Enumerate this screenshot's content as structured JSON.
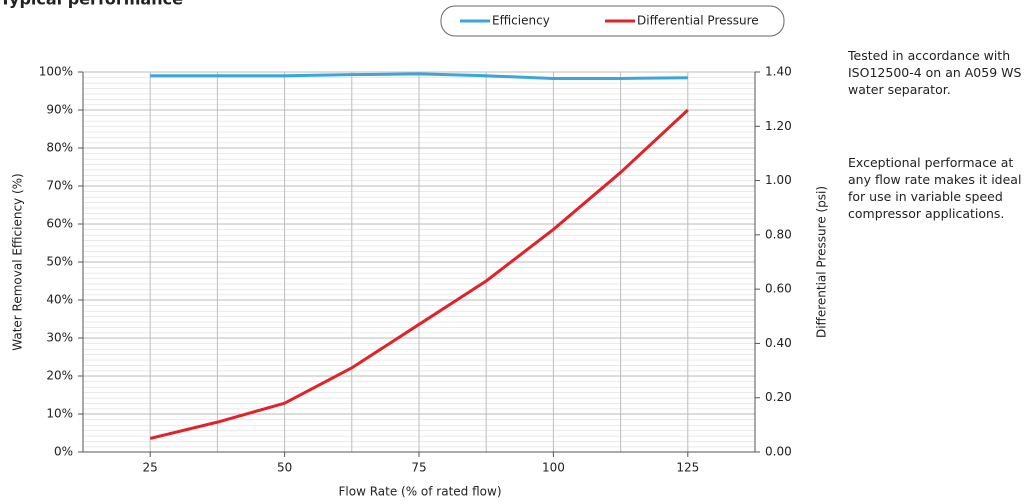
{
  "chart_data": {
    "type": "line",
    "title": "Typical performance",
    "x_label": "Flow Rate (% of rated flow)",
    "y_label": "Water Removal Efficiency (%)",
    "y2_label": "Differential Pressure (psi)",
    "x": [
      25,
      37.5,
      50,
      62.5,
      75,
      87.5,
      100,
      112.5,
      125
    ],
    "xlim": [
      12.5,
      137.5
    ],
    "xticks": [
      25,
      50,
      75,
      100,
      125
    ],
    "ylim": [
      0,
      100
    ],
    "yticks": [
      {
        "value": 0,
        "label": "0%"
      },
      {
        "value": 10,
        "label": "10%"
      },
      {
        "value": 20,
        "label": "20%"
      },
      {
        "value": 30,
        "label": "30%"
      },
      {
        "value": 40,
        "label": "40%"
      },
      {
        "value": 50,
        "label": "50%"
      },
      {
        "value": 60,
        "label": "60%"
      },
      {
        "value": 70,
        "label": "70%"
      },
      {
        "value": 80,
        "label": "80%"
      },
      {
        "value": 90,
        "label": "90%"
      },
      {
        "value": 100,
        "label": "100%"
      }
    ],
    "y2lim": [
      0,
      1.4
    ],
    "y2ticks": [
      {
        "value": 0,
        "label": "0.00"
      },
      {
        "value": 0.2,
        "label": "0.20"
      },
      {
        "value": 0.4,
        "label": "0.40"
      },
      {
        "value": 0.6,
        "label": "0.60"
      },
      {
        "value": 0.8,
        "label": "0.80"
      },
      {
        "value": 1.0,
        "label": "1.00"
      },
      {
        "value": 1.2,
        "label": "1.20"
      },
      {
        "value": 1.4,
        "label": "1.40"
      }
    ],
    "grid": true,
    "series": [
      {
        "name": "Efficiency",
        "color": "#3aa6dd",
        "values": [
          99,
          99,
          99,
          99.3,
          99.5,
          99,
          98.3,
          98.3,
          98.5
        ]
      },
      {
        "name": "Differential Pressure",
        "color": "#e0232a",
        "axis": "y2",
        "values": [
          0.05,
          0.11,
          0.18,
          0.31,
          0.47,
          0.63,
          0.82,
          1.03,
          1.26
        ]
      }
    ]
  },
  "notes": [
    "Tested in accordance with ISO12500-4 on an A059 WS water separator.",
    "Exceptional performace at any flow rate makes it ideal for use in variable speed compressor applications."
  ]
}
